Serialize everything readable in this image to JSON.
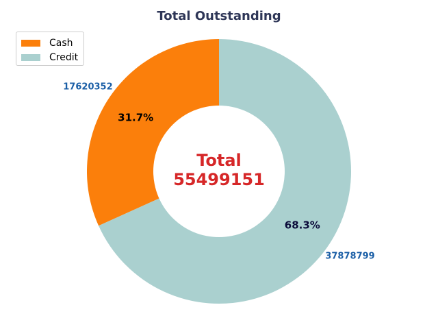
{
  "chart_data": {
    "type": "pie",
    "title": "Total Outstanding",
    "categories": [
      "Cash",
      "Credit"
    ],
    "values": [
      17620352,
      37878799
    ],
    "percent_labels": [
      "31.7%",
      "68.3%"
    ],
    "value_labels": [
      "17620352",
      "37878799"
    ],
    "colors": [
      "#fb7f0b",
      "#aad0cf"
    ],
    "center_label": {
      "line1": "Total",
      "line2": "55499151"
    },
    "donut": true,
    "legend_position": "top-left",
    "title_color": "#2e3657",
    "center_label_color": "#d62728",
    "value_label_color": "#1a5ea6",
    "start_angle_deg": 90,
    "direction": "counterclockwise"
  }
}
